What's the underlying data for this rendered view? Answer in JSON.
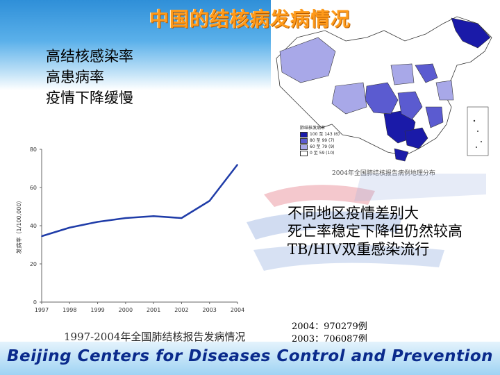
{
  "title": "中国的结核病发病情况",
  "left_bullets": [
    "高结核感染率",
    "高患病率",
    "疫情下降缓慢"
  ],
  "right_bullets": [
    "不同地区疫情差别大",
    "死亡率稳定下降但仍然较高",
    "TB/HIV双重感染流行"
  ],
  "map": {
    "legend_title": "肺结核发病率",
    "legend_items": [
      "100 至 143  (6)",
      "80 至 99  (7)",
      "60 至 79  (9)",
      "0 至 59  (10)"
    ],
    "legend_colors": [
      "#1a1aa8",
      "#5b5bd0",
      "#a8a8e8",
      "#ffffff"
    ],
    "caption": "2004年全国肺结核报告病例地理分布"
  },
  "chart_data": {
    "type": "line",
    "x": [
      "1997",
      "1998",
      "1999",
      "2000",
      "2001",
      "2002",
      "2003",
      "2004"
    ],
    "values": [
      34.5,
      39,
      42,
      44,
      45,
      44,
      53,
      72
    ],
    "ylabel": "发病率（1/100,000）",
    "ylim": [
      0,
      80
    ],
    "yticks": [
      "0",
      "20",
      "40",
      "60",
      "80"
    ],
    "color": "#1f3ca8"
  },
  "chart_caption": "1997-2004年全国肺结核报告发病情况",
  "cases": [
    "2004：970279例",
    "2003：706087例"
  ],
  "footer": "Beijing Centers for Diseases Control and Prevention"
}
